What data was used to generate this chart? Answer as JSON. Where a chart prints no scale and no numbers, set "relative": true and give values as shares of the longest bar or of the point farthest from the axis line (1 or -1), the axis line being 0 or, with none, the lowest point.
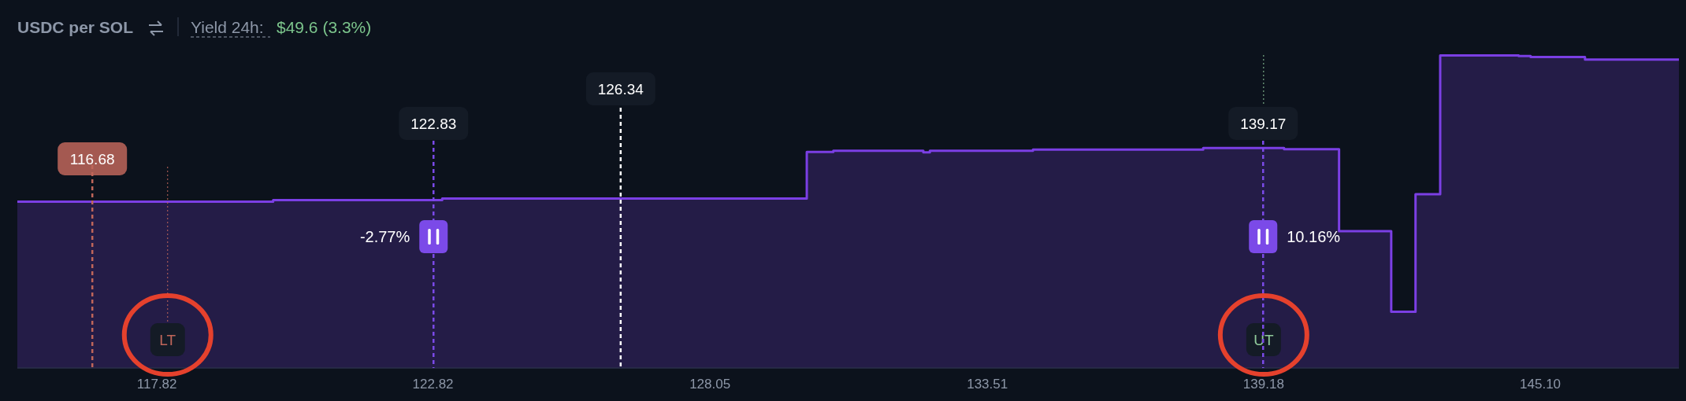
{
  "chart_data": {
    "type": "area",
    "title": "USDC per SOL",
    "subtitle": "Yield 24h:",
    "relative": true,
    "log": "x",
    "grid": false,
    "x": [
      115.37,
      119.9,
      119.9,
      122.99,
      122.99,
      129.93,
      129.93,
      130.45,
      130.45,
      132.23,
      132.23,
      132.36,
      132.36,
      134.43,
      134.43,
      137.92,
      137.92,
      139.61,
      139.61,
      140.77,
      140.77,
      141.88,
      141.88,
      142.4,
      142.4,
      142.93,
      142.93,
      144.63,
      144.63,
      144.89,
      144.89,
      146.08,
      146.08,
      148.16
    ],
    "series": [
      {
        "color": "#7b3fe4",
        "values": [
          0.532,
          0.532,
          0.537,
          0.537,
          0.542,
          0.542,
          0.691,
          0.691,
          0.695,
          0.695,
          0.69,
          0.69,
          0.695,
          0.695,
          0.699,
          0.699,
          0.704,
          0.704,
          0.7,
          0.7,
          0.438,
          0.438,
          0.18,
          0.18,
          0.556,
          0.556,
          1.0,
          1.0,
          0.998,
          0.998,
          0.995,
          0.995,
          0.987,
          0.987
        ]
      }
    ],
    "xlim": [
      115.37,
      148.16
    ],
    "xticks": [
      117.82,
      122.82,
      128.05,
      133.51,
      139.18,
      {
        "value": 145.1,
        "label": "145.10"
      }
    ],
    "ref_lines": [
      {
        "axis": "x",
        "value": 116.68,
        "label": "116.68",
        "color": "#c0665a",
        "line_style": "dashed"
      },
      {
        "axis": "x",
        "value": 118.01,
        "label": "LT",
        "color": "#c0665a",
        "line_style": "dotted"
      },
      {
        "axis": "x",
        "value": 122.83,
        "label": "122.83",
        "color": "#7b4ae8",
        "line_style": "dashed"
      },
      {
        "axis": "x",
        "value": 126.34,
        "label": "126.34",
        "color": "#ffffff",
        "line_style": "dashed"
      },
      {
        "axis": "x",
        "value": 139.18,
        "label": "UT",
        "color": "#8fc99a",
        "line_style": "dotted"
      },
      {
        "axis": "x",
        "value": 139.17,
        "label": "139.17",
        "color": "#7b4ae8",
        "line_style": "dashed"
      }
    ],
    "annotations": [
      "$49.6 (3.3%)",
      {
        "text": "-2.77%",
        "x": 122.83
      },
      {
        "text": "10.16%",
        "x": 139.17
      }
    ]
  }
}
